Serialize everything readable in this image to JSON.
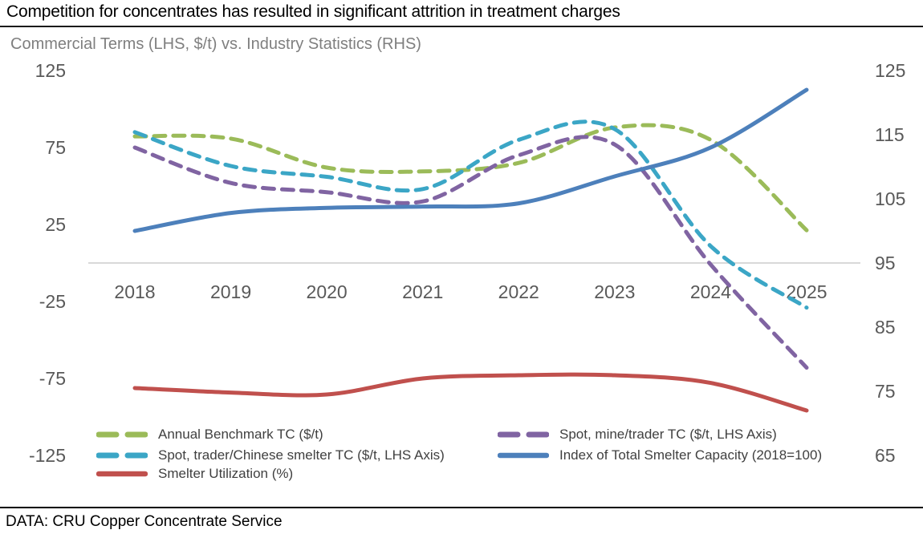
{
  "title": "Competition for concentrates has resulted in significant attrition in treatment charges",
  "subtitle": "Commercial Terms (LHS, $/t) vs. Industry Statistics (RHS)",
  "footer": "DATA: CRU Copper Concentrate Service",
  "colors": {
    "green": "#9BBB59",
    "purple": "#8064A2",
    "teal": "#3BA6C6",
    "blue": "#4D80BB",
    "red": "#C0504D",
    "axis_text": "#595959",
    "legend_text": "#404040",
    "subtitle_text": "#7f7f7f",
    "gridline": "#d9d9d9",
    "rule": "#1a1a1a"
  },
  "chart_data": {
    "type": "line",
    "title": "Commercial Terms (LHS, $/t) vs. Industry Statistics (RHS)",
    "x": [
      "2018",
      "2019",
      "2020",
      "2021",
      "2022",
      "2023",
      "2024",
      "2025"
    ],
    "left_axis": {
      "label": "Commercial Terms (LHS, $/t)",
      "ticks": [
        "125",
        "75",
        "25",
        "-25",
        "-75",
        "-125"
      ],
      "tick_values": [
        125,
        75,
        25,
        -25,
        -75,
        -125
      ],
      "range": [
        -125,
        125
      ]
    },
    "right_axis": {
      "label": "Industry Statistics (RHS)",
      "ticks": [
        "125",
        "115",
        "105",
        "95",
        "85",
        "75",
        "65"
      ],
      "tick_values": [
        125,
        115,
        105,
        95,
        85,
        75,
        65
      ],
      "range": [
        65,
        125
      ]
    },
    "gridline_left_value": 0,
    "grid": "single horizontal line at LHS 0 / RHS 95",
    "legend_position": "bottom",
    "smoothing": "smoothed (Excel-style) lines",
    "series": [
      {
        "name": "Annual Benchmark TC ($/t)",
        "axis": "left",
        "style": "dashed",
        "color": "#9BBB59",
        "values": [
          82.25,
          80.8,
          62,
          59.5,
          65,
          88,
          80,
          21.25
        ]
      },
      {
        "name": "Spot, mine/trader TC ($/t, LHS Axis)",
        "axis": "left",
        "style": "dashed",
        "color": "#8064A2",
        "values": [
          75,
          52,
          46,
          40,
          70,
          77,
          -1,
          -68
        ]
      },
      {
        "name": "Spot, trader/Chinese smelter TC ($/t, LHS Axis)",
        "axis": "left",
        "style": "dashed",
        "color": "#3BA6C6",
        "values": [
          85,
          63,
          56,
          48,
          80,
          87,
          11,
          -29
        ]
      },
      {
        "name": "Index of Total Smelter Capacity (2018=100)",
        "axis": "right",
        "style": "solid",
        "color": "#4D80BB",
        "values": [
          100,
          102.8,
          103.6,
          103.8,
          104.3,
          108.5,
          113,
          122
        ]
      },
      {
        "name": "Smelter Utilization (%)",
        "axis": "right",
        "style": "solid",
        "color": "#C0504D",
        "values": [
          75.5,
          74.8,
          74.5,
          77,
          77.5,
          77.5,
          76.3,
          72
        ]
      }
    ]
  }
}
